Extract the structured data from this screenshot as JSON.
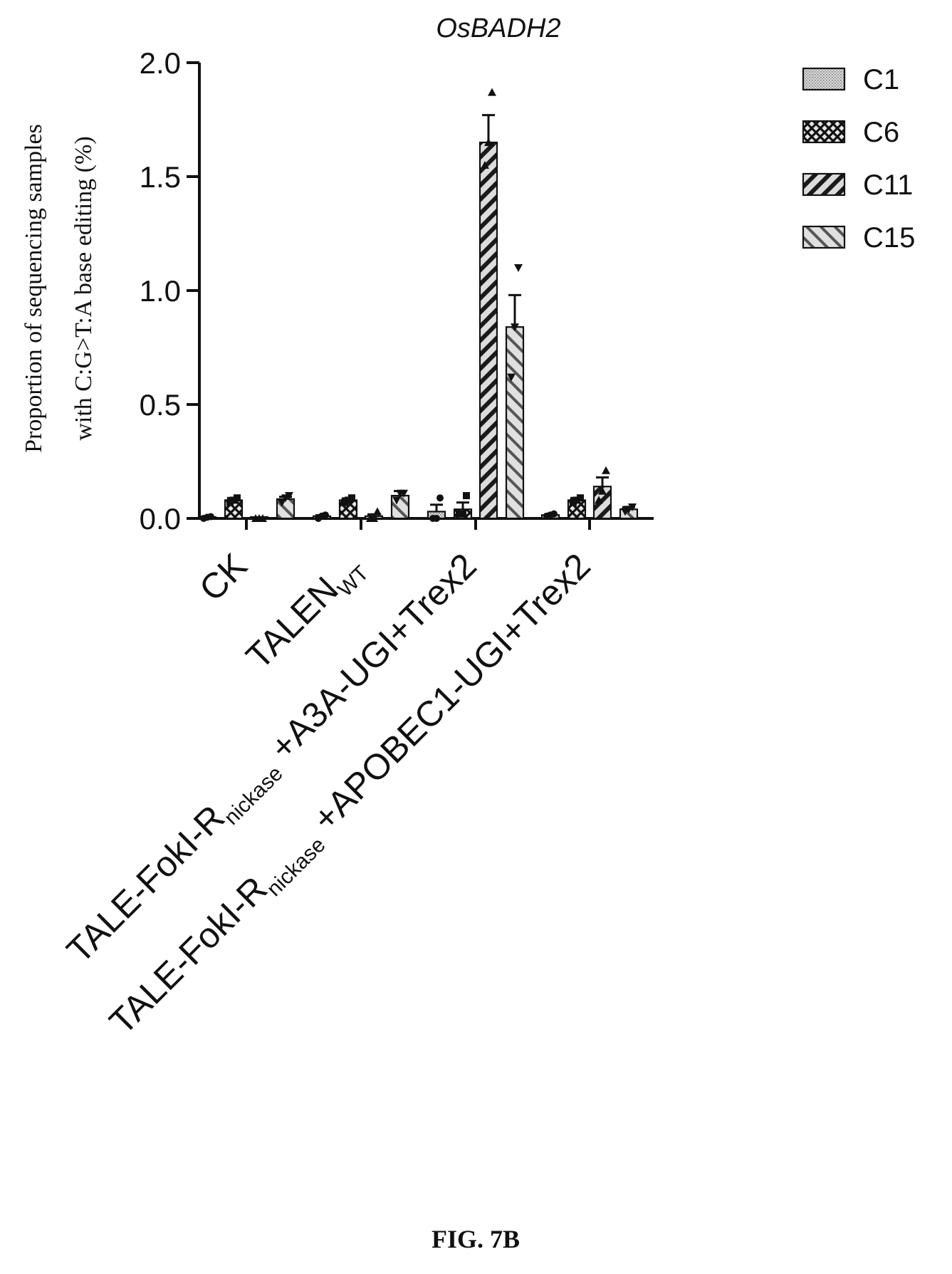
{
  "figure": {
    "caption": "FIG. 7B"
  },
  "chart_data": {
    "type": "bar",
    "title": "OsBADH2",
    "ylabel_lines": [
      "Proportion of sequencing samples",
      "with C:G>T:A base editing (%)"
    ],
    "xlabel": "",
    "ylim": [
      0,
      2.0
    ],
    "yticks": [
      0.0,
      0.5,
      1.0,
      1.5,
      2.0
    ],
    "ytick_labels": [
      "0.0",
      "0.5",
      "1.0",
      "1.5",
      "2.0"
    ],
    "categories": [
      {
        "main": "CK",
        "sub": "",
        "suffix": ""
      },
      {
        "main": "TALEN",
        "sub": "WT",
        "suffix": ""
      },
      {
        "main": "TALE-FokI-R",
        "sub": "nickase",
        "suffix": " +A3A-UGI+Trex2"
      },
      {
        "main": "TALE-FokI-R",
        "sub": "nickase",
        "suffix": " +APOBEC1-UGI+Trex2"
      }
    ],
    "series": [
      {
        "name": "C1",
        "pattern": "dots",
        "values": [
          0.005,
          0.01,
          0.03,
          0.015
        ],
        "errors": [
          0.003,
          0.004,
          0.03,
          0.003
        ]
      },
      {
        "name": "C6",
        "pattern": "cross",
        "values": [
          0.08,
          0.08,
          0.04,
          0.08
        ],
        "errors": [
          0.01,
          0.008,
          0.03,
          0.01
        ]
      },
      {
        "name": "C11",
        "pattern": "diagA",
        "values": [
          0.0,
          0.01,
          1.65,
          0.14
        ],
        "errors": [
          0.0,
          0.008,
          0.12,
          0.04
        ]
      },
      {
        "name": "C15",
        "pattern": "diagB",
        "values": [
          0.085,
          0.1,
          0.84,
          0.04
        ],
        "errors": [
          0.01,
          0.02,
          0.14,
          0.01
        ]
      }
    ],
    "points": [
      [
        [
          0.0,
          0.005,
          0.008
        ],
        [
          0.07,
          0.08,
          0.09
        ],
        [
          0.0,
          0.0,
          0.0
        ],
        [
          0.07,
          0.09,
          0.1
        ]
      ],
      [
        [
          0.0,
          0.01,
          0.015
        ],
        [
          0.07,
          0.08,
          0.09
        ],
        [
          0.0,
          0.0,
          0.03
        ],
        [
          0.08,
          0.11,
          0.11
        ]
      ],
      [
        [
          0.0,
          0.0,
          0.09
        ],
        [
          0.02,
          0.02,
          0.1
        ],
        [
          1.55,
          1.65,
          1.87
        ],
        [
          0.62,
          0.84,
          1.1
        ]
      ],
      [
        [
          0.01,
          0.015,
          0.02
        ],
        [
          0.07,
          0.08,
          0.09
        ],
        [
          0.08,
          0.12,
          0.21
        ],
        [
          0.03,
          0.04,
          0.05
        ]
      ]
    ],
    "legend_position": "right",
    "grid": false
  }
}
